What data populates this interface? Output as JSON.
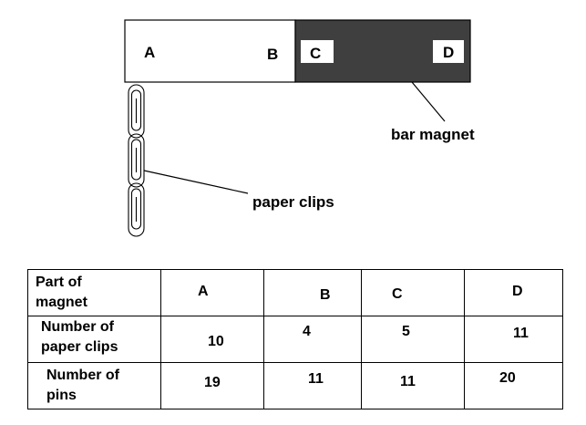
{
  "magnet": {
    "pole_labels": [
      "A",
      "B",
      "C",
      "D"
    ],
    "caption": "bar magnet",
    "colors": {
      "left_half": "#ffffff",
      "right_half": "#3f3f3f",
      "outline": "#000000"
    }
  },
  "clips": {
    "caption": "paper clips",
    "count_drawn": 3
  },
  "table": {
    "header": {
      "row_label": "Part of magnet",
      "columns": [
        "A",
        "B",
        "C",
        "D"
      ]
    },
    "rows": [
      {
        "label": "Number of paper clips",
        "values": [
          "10",
          "4",
          "5",
          "11"
        ]
      },
      {
        "label": "Number of pins",
        "values": [
          "19",
          "11",
          "11",
          "20"
        ]
      }
    ]
  }
}
